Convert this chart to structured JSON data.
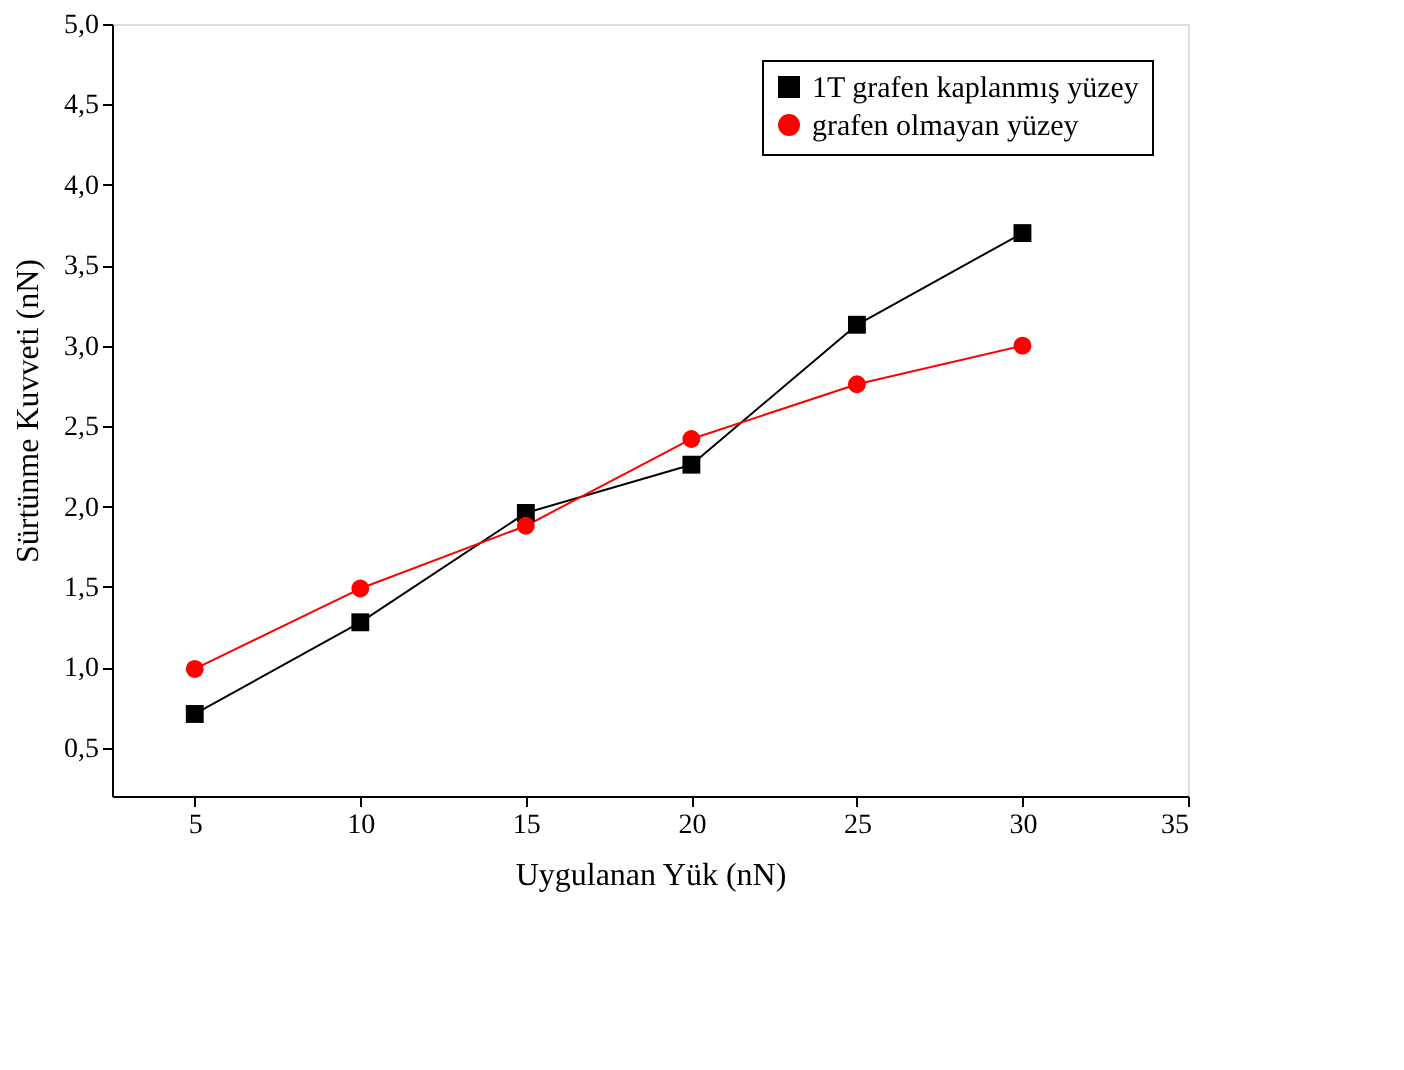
{
  "chart_data": {
    "type": "line",
    "xlabel": "Uygulanan Yük (nN)",
    "ylabel": "Sürtünme Kuvveti (nN)",
    "x": [
      5,
      10,
      15,
      20,
      25,
      30
    ],
    "series": [
      {
        "name": "1T grafen kaplanmış yüzey",
        "color": "#000000",
        "marker": "square",
        "values": [
          0.71,
          1.28,
          1.96,
          2.26,
          3.13,
          3.7
        ]
      },
      {
        "name": "grafen olmayan yüzey",
        "color": "#ff0000",
        "marker": "circle",
        "values": [
          0.99,
          1.49,
          1.88,
          2.42,
          2.76,
          3.0
        ]
      }
    ],
    "xlim": [
      2.5,
      35
    ],
    "xticks": [
      5,
      10,
      15,
      20,
      25,
      30,
      35
    ],
    "ylim": [
      0.2,
      5.0
    ],
    "yticks": [
      {
        "value": 0.5,
        "label": "0,5"
      },
      {
        "value": 1.0,
        "label": "1,0"
      },
      {
        "value": 1.5,
        "label": "1,5"
      },
      {
        "value": 2.0,
        "label": "2,0"
      },
      {
        "value": 2.5,
        "label": "2,5"
      },
      {
        "value": 3.0,
        "label": "3,0"
      },
      {
        "value": 3.5,
        "label": "3,5"
      },
      {
        "value": 4.0,
        "label": "4,0"
      },
      {
        "value": 4.5,
        "label": "4,5"
      },
      {
        "value": 5.0,
        "label": "5,0"
      }
    ],
    "grid": false,
    "legend": "top right",
    "line_style": "solid"
  }
}
